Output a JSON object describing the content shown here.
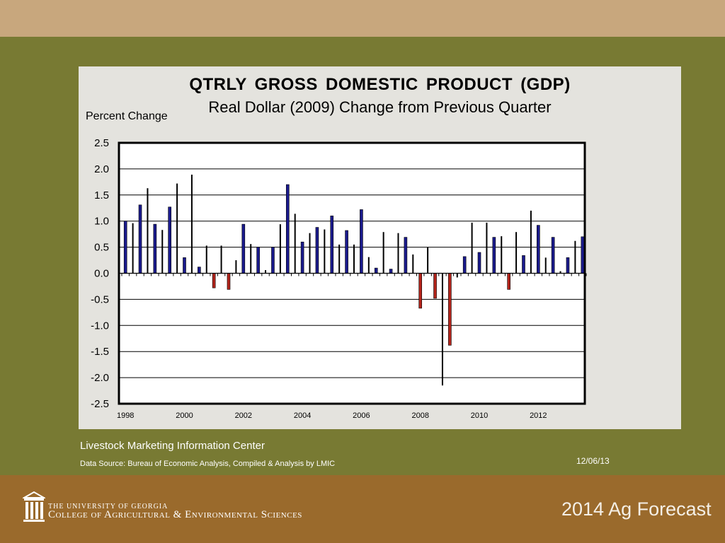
{
  "slide": {
    "source": "Livestock Marketing Information Center",
    "data_source": "Data Source:  Bureau of Economic Analysis, Compiled & Analysis by LMIC",
    "date": "12/06/13",
    "university_line1": "THE UNIVERSITY OF GEORGIA",
    "university_line2": "College of Agricultural & Environmental Sciences",
    "forecast_label": "2014 Ag Forecast"
  },
  "colors": {
    "top_band": "#c8a77d",
    "green_band": "#787a33",
    "brown_band": "#9a6a2c",
    "panel": "#e4e3de",
    "positive_bar": "#1a1a8c",
    "negative_bar": "#b3241b",
    "alt_bar": "#000000"
  },
  "chart_data": {
    "type": "bar",
    "title": "QTRLY  GROSS  DOMESTIC  PRODUCT  (GDP)",
    "subtitle": "Real Dollar (2009) Change from Previous Quarter",
    "ylabel": "Percent Change",
    "xlabel": "",
    "ylim": [
      -2.5,
      2.5
    ],
    "yticks": [
      "2.5",
      "2.0",
      "1.5",
      "1.0",
      "0.5",
      "0.0",
      "-0.5",
      "-1.0",
      "-1.5",
      "-2.0",
      "-2.5"
    ],
    "xticks": [
      "1998",
      "2000",
      "2002",
      "2004",
      "2006",
      "2008",
      "2010",
      "2012"
    ],
    "x_start": "1998-Q1",
    "grid": true,
    "series": [
      {
        "values": [
          1.0,
          0.96,
          1.31,
          1.63,
          0.94,
          0.83,
          1.27,
          1.72,
          0.3,
          1.89,
          0.12,
          0.53,
          -0.28,
          0.53,
          -0.31,
          0.25,
          0.94,
          0.56,
          0.5,
          0.06,
          0.5,
          0.94,
          1.7,
          1.14,
          0.6,
          0.77,
          0.88,
          0.84,
          1.1,
          0.55,
          0.82,
          0.55,
          1.22,
          0.31,
          0.1,
          0.79,
          0.08,
          0.77,
          0.69,
          0.36,
          -0.67,
          0.5,
          -0.48,
          -2.15,
          -1.38,
          -0.08,
          0.32,
          0.97,
          0.4,
          0.97,
          0.69,
          0.71,
          -0.31,
          0.79,
          0.34,
          1.2,
          0.92,
          0.3,
          0.69,
          0.04,
          0.3,
          0.62,
          0.7
        ]
      }
    ]
  }
}
